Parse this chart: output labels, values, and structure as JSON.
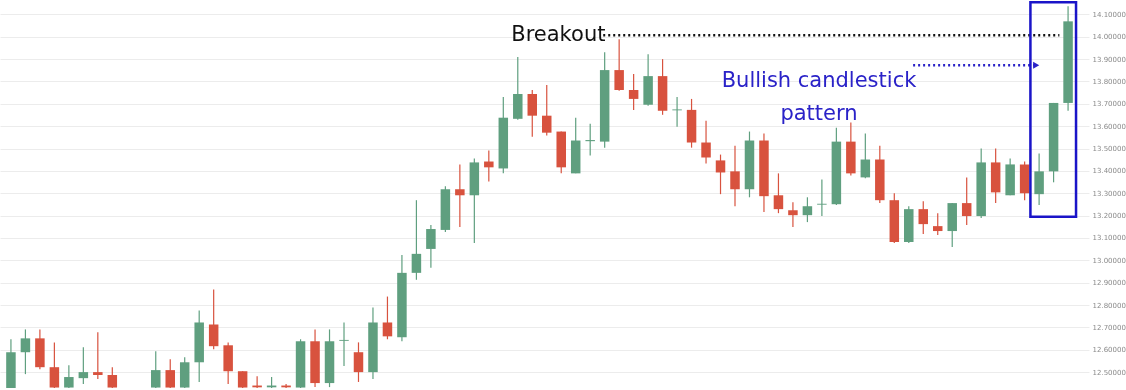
{
  "chart_data": {
    "type": "candlestick",
    "categories": [
      null,
      null,
      null,
      null,
      null,
      null,
      null,
      null,
      null,
      null,
      null,
      null,
      null,
      null,
      null,
      null,
      null,
      null,
      null,
      null,
      null,
      null,
      null,
      null,
      null,
      null,
      null,
      null,
      null,
      null,
      null,
      null,
      null,
      null,
      null,
      null,
      null,
      null,
      null,
      null,
      null,
      null,
      null,
      null,
      null,
      null,
      null,
      null,
      null,
      null,
      null,
      null,
      null,
      null,
      null,
      null,
      null,
      null,
      null,
      null,
      null,
      null,
      null,
      null,
      null,
      null,
      null,
      null,
      null,
      null,
      null,
      null,
      null,
      null
    ],
    "ohlc": [
      [
        12.429,
        12.647,
        12.429,
        12.589
      ],
      [
        12.589,
        12.691,
        12.491,
        12.651
      ],
      [
        12.651,
        12.691,
        12.513,
        12.522
      ],
      [
        12.522,
        12.633,
        12.429,
        12.431
      ],
      [
        12.431,
        12.531,
        12.429,
        12.478
      ],
      [
        12.473,
        12.611,
        12.447,
        12.5
      ],
      [
        12.5,
        12.678,
        12.469,
        12.487
      ],
      [
        12.487,
        12.522,
        12.429,
        12.431
      ],
      null,
      null,
      [
        12.431,
        12.593,
        12.429,
        12.509
      ],
      [
        12.509,
        12.558,
        12.429,
        12.431
      ],
      [
        12.431,
        12.567,
        12.429,
        12.544
      ],
      [
        12.544,
        12.776,
        12.456,
        12.722
      ],
      [
        12.713,
        12.869,
        12.602,
        12.616
      ],
      [
        12.62,
        12.633,
        12.447,
        12.504
      ],
      [
        12.504,
        12.504,
        12.429,
        12.431
      ],
      [
        12.44,
        12.482,
        12.429,
        12.432
      ],
      [
        12.432,
        12.478,
        12.429,
        12.44
      ],
      [
        12.44,
        12.447,
        12.429,
        12.432
      ],
      [
        12.431,
        12.647,
        12.429,
        12.638
      ],
      [
        12.638,
        12.691,
        12.433,
        12.451
      ],
      [
        12.451,
        12.691,
        12.433,
        12.638
      ],
      [
        12.64,
        12.722,
        12.527,
        12.644
      ],
      [
        12.589,
        12.633,
        12.456,
        12.5
      ],
      [
        12.5,
        12.789,
        12.469,
        12.722
      ],
      [
        12.722,
        12.838,
        12.647,
        12.66
      ],
      [
        12.656,
        13.024,
        12.638,
        12.944
      ],
      [
        12.944,
        13.269,
        12.913,
        13.029
      ],
      [
        13.051,
        13.158,
        12.967,
        13.14
      ],
      [
        13.136,
        13.331,
        13.127,
        13.318
      ],
      [
        13.318,
        13.429,
        13.149,
        13.291
      ],
      [
        13.291,
        13.456,
        13.078,
        13.438
      ],
      [
        13.442,
        13.491,
        13.353,
        13.416
      ],
      [
        13.411,
        13.731,
        13.389,
        13.638
      ],
      [
        13.633,
        13.909,
        13.629,
        13.744
      ],
      [
        13.744,
        13.762,
        13.553,
        13.647
      ],
      [
        13.647,
        13.784,
        13.558,
        13.571
      ],
      [
        13.576,
        13.576,
        13.389,
        13.416
      ],
      [
        13.389,
        13.638,
        13.389,
        13.536
      ],
      [
        13.533,
        13.611,
        13.469,
        13.538
      ],
      [
        13.531,
        13.931,
        13.504,
        13.851
      ],
      [
        13.851,
        13.989,
        13.758,
        13.762
      ],
      [
        13.762,
        13.833,
        13.673,
        13.722
      ],
      [
        13.696,
        13.922,
        13.691,
        13.824
      ],
      [
        13.824,
        13.9,
        13.651,
        13.669
      ],
      [
        13.671,
        13.731,
        13.598,
        13.675
      ],
      [
        13.673,
        13.722,
        13.504,
        13.527
      ],
      [
        13.527,
        13.624,
        13.433,
        13.46
      ],
      [
        13.447,
        13.473,
        13.296,
        13.393
      ],
      [
        13.398,
        13.513,
        13.242,
        13.318
      ],
      [
        13.318,
        13.576,
        13.282,
        13.536
      ],
      [
        13.536,
        13.567,
        13.216,
        13.287
      ],
      [
        13.291,
        13.389,
        13.211,
        13.229
      ],
      [
        13.224,
        13.26,
        13.149,
        13.202
      ],
      [
        13.202,
        13.282,
        13.171,
        13.242
      ],
      [
        13.249,
        13.362,
        13.198,
        13.253
      ],
      [
        13.251,
        13.593,
        13.247,
        13.531
      ],
      [
        13.531,
        13.616,
        13.38,
        13.389
      ],
      [
        13.371,
        13.567,
        13.367,
        13.451
      ],
      [
        13.451,
        13.513,
        13.256,
        13.269
      ],
      [
        13.269,
        13.3,
        13.078,
        13.082
      ],
      [
        13.082,
        13.242,
        13.078,
        13.229
      ],
      [
        13.229,
        13.264,
        13.118,
        13.162
      ],
      [
        13.153,
        13.211,
        13.113,
        13.131
      ],
      [
        13.131,
        13.256,
        13.06,
        13.256
      ],
      [
        13.256,
        13.371,
        13.158,
        13.198
      ],
      [
        13.198,
        13.5,
        13.189,
        13.438
      ],
      [
        13.438,
        13.5,
        13.256,
        13.304
      ],
      [
        13.291,
        13.456,
        13.291,
        13.429
      ],
      [
        13.429,
        13.442,
        13.269,
        13.3
      ],
      [
        13.296,
        13.478,
        13.247,
        13.398
      ],
      [
        13.398,
        13.704,
        13.349,
        13.704
      ],
      [
        13.704,
        14.136,
        13.669,
        14.069
      ]
    ],
    "colors": [
      "#5f9f7f",
      "#5f9f7f",
      "#d8523e",
      "#d8523e",
      "#5f9f7f",
      "#5f9f7f",
      "#d8523e",
      "#d8523e",
      null,
      null,
      "#5f9f7f",
      "#d8523e",
      "#5f9f7f",
      "#5f9f7f",
      "#d8523e",
      "#d8523e",
      "#d8523e",
      "#d8523e",
      "#5f9f7f",
      "#d8523e",
      "#5f9f7f",
      "#d8523e",
      "#5f9f7f",
      "#5f9f7f",
      "#d8523e",
      "#5f9f7f",
      "#d8523e",
      "#5f9f7f",
      "#5f9f7f",
      "#5f9f7f",
      "#5f9f7f",
      "#d8523e",
      "#5f9f7f",
      "#d8523e",
      "#5f9f7f",
      "#5f9f7f",
      "#d8523e",
      "#d8523e",
      "#d8523e",
      "#5f9f7f",
      "#5f9f7f",
      "#5f9f7f",
      "#d8523e",
      "#d8523e",
      "#5f9f7f",
      "#d8523e",
      "#5f9f7f",
      "#d8523e",
      "#d8523e",
      "#d8523e",
      "#d8523e",
      "#5f9f7f",
      "#d8523e",
      "#d8523e",
      "#d8523e",
      "#5f9f7f",
      "#5f9f7f",
      "#5f9f7f",
      "#d8523e",
      "#5f9f7f",
      "#d8523e",
      "#d8523e",
      "#5f9f7f",
      "#d8523e",
      "#d8523e",
      "#5f9f7f",
      "#d8523e",
      "#5f9f7f",
      "#d8523e",
      "#5f9f7f",
      "#d8523e",
      "#5f9f7f",
      "#5f9f7f",
      "#5f9f7f"
    ],
    "ylim": [
      12.42,
      14.16
    ],
    "yticks": [
      {
        "value": 12.5,
        "label": "12.50000"
      },
      {
        "value": 12.6,
        "label": "12.60000"
      },
      {
        "value": 12.7,
        "label": "12.70000"
      },
      {
        "value": 12.8,
        "label": "12.80000"
      },
      {
        "value": 12.9,
        "label": "12.90000"
      },
      {
        "value": 13.0,
        "label": "13.00000"
      },
      {
        "value": 13.1,
        "label": "13.10000"
      },
      {
        "value": 13.2,
        "label": "13.20000"
      },
      {
        "value": 13.3,
        "label": "13.30000"
      },
      {
        "value": 13.4,
        "label": "13.40000"
      },
      {
        "value": 13.5,
        "label": "13.50000"
      },
      {
        "value": 13.6,
        "label": "13.60000"
      },
      {
        "value": 13.7,
        "label": "13.70000"
      },
      {
        "value": 13.8,
        "label": "13.80000"
      },
      {
        "value": 13.9,
        "label": "13.90000"
      },
      {
        "value": 14.0,
        "label": "14.00000"
      },
      {
        "value": 14.1,
        "label": "14.10000"
      }
    ],
    "grid": "y",
    "tick_labels": "y",
    "annotations": [
      "Breakout",
      "Bullish candlestick pattern"
    ]
  }
}
